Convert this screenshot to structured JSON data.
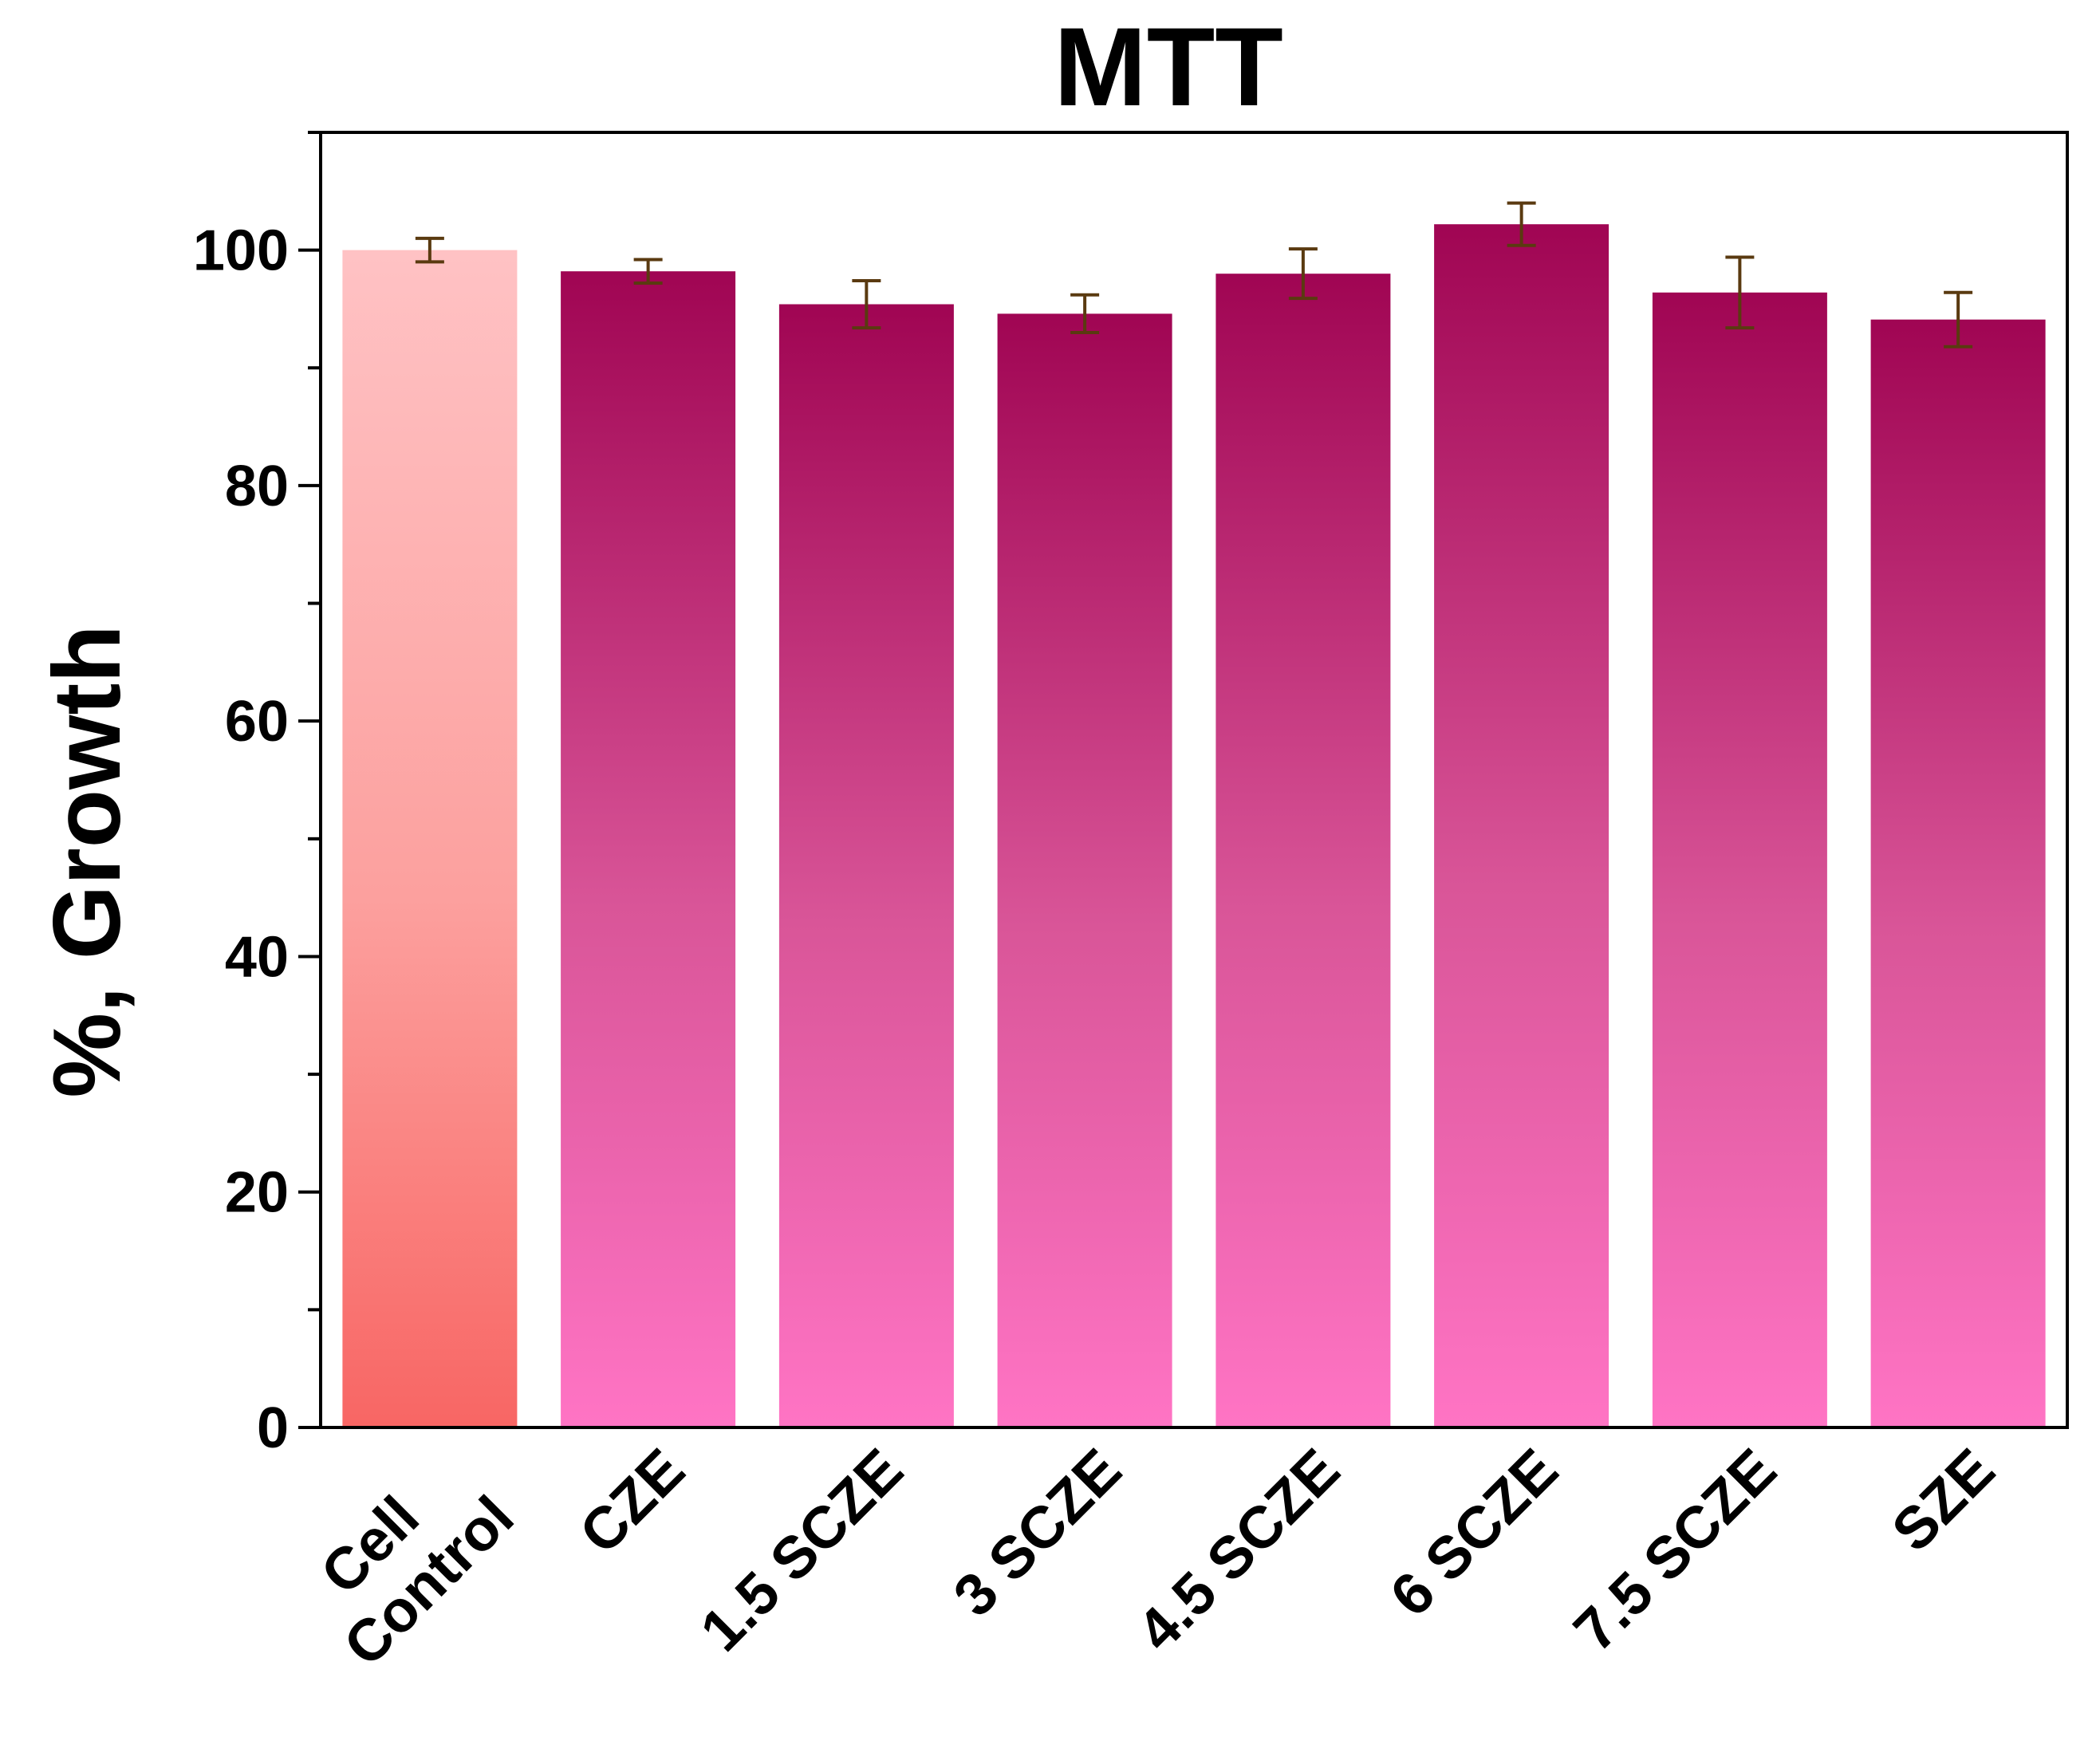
{
  "chart_data": {
    "type": "bar",
    "title": "MTT",
    "xlabel": "",
    "ylabel": "%, Growth",
    "ylim": [
      0,
      110
    ],
    "yticks": [
      0,
      20,
      40,
      60,
      80,
      100
    ],
    "yminor_step": 10,
    "grid": false,
    "legend": "none",
    "categories": [
      [
        "Cell",
        "Control"
      ],
      [
        "CZE"
      ],
      [
        "1.5 SCZE"
      ],
      [
        "3 SCZE"
      ],
      [
        "4.5 SCZE"
      ],
      [
        "6 SCZE"
      ],
      [
        "7.5 SCZE"
      ],
      [
        "SZE"
      ]
    ],
    "values": [
      100.0,
      98.2,
      95.4,
      94.6,
      98.0,
      102.2,
      96.4,
      94.1
    ],
    "errors": [
      1.0,
      1.0,
      2.0,
      1.6,
      2.1,
      1.8,
      3.0,
      2.3
    ],
    "colors": {
      "control_top": "#FFC2C4",
      "control_mid": "#FCA09E",
      "control_bottom": "#F86664",
      "sample_top": "#A00553",
      "sample_mid": "#D95598",
      "sample_bottom": "#FF74C4",
      "error_bar": "#5A3A10",
      "axis": "#000000"
    }
  }
}
